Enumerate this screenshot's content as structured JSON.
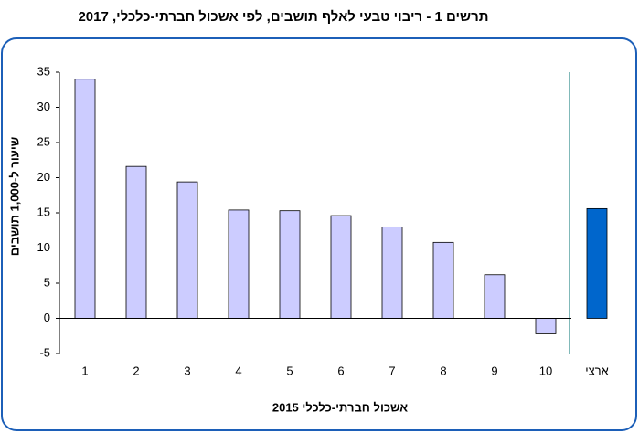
{
  "chart_data": {
    "type": "bar",
    "title": "תרשים 1 - ריבוי טבעי לאלף תושבים, לפי אשכול חברתי-כלכלי, 2017",
    "x_label": "אשכול חברתי-כלכלי 2015",
    "y_label": "שיעור ל-1,000 תושבים",
    "categories": [
      "1",
      "2",
      "3",
      "4",
      "5",
      "6",
      "7",
      "8",
      "9",
      "10",
      "ארצי"
    ],
    "values": [
      34,
      21.6,
      19.4,
      15.4,
      15.3,
      14.6,
      13.0,
      10.8,
      6.2,
      -2.2,
      15.6
    ],
    "colors": [
      "#ccccff",
      "#ccccff",
      "#ccccff",
      "#ccccff",
      "#ccccff",
      "#ccccff",
      "#ccccff",
      "#ccccff",
      "#ccccff",
      "#ccccff",
      "#0066cc"
    ],
    "ylim": [
      -5,
      35
    ],
    "yticks": [
      -5,
      0,
      5,
      10,
      15,
      20,
      25,
      30,
      35
    ],
    "grid": false
  }
}
